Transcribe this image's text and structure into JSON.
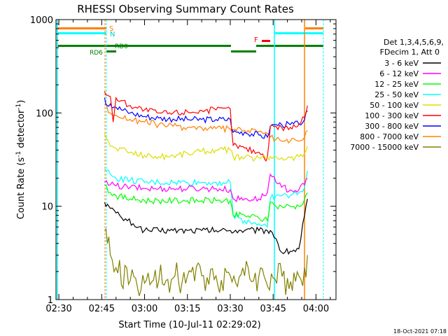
{
  "chart_data": {
    "type": "line",
    "title": "RHESSI Observing Summary Count Rates",
    "xlabel": "Start Time (10-Jul-11 02:29:02)",
    "ylabel_main": "Count Rate (s",
    "ylabel_sup1": "-1",
    "ylabel_mid": " detector",
    "ylabel_sup2": "-1",
    "ylabel_end": ")",
    "y_scale": "log",
    "ylim": [
      1,
      1000
    ],
    "xlim": [
      149,
      247
    ],
    "x_tick_minutes": [
      150,
      165,
      180,
      195,
      210,
      225,
      240
    ],
    "x_tick_labels": [
      "02:30",
      "02:45",
      "03:00",
      "03:15",
      "03:30",
      "03:45",
      "04:00"
    ],
    "y_tick_values": [
      1,
      10,
      100,
      1000
    ],
    "y_tick_labels": [
      "1",
      "10",
      "100",
      "1000"
    ],
    "legend_header": [
      "Det 1,3,4,5,6,9,",
      "FDecim 1, Att 0"
    ],
    "legend_position": "right",
    "timestamp": "18-Oct-2021 07:18",
    "flag_labels": {
      "saa": "S",
      "night": "N",
      "decim": "RD0",
      "decim2": "RD6",
      "flare": "F"
    },
    "series": [
      {
        "name": "3 - 6 keV",
        "color": "#000000",
        "x": [
          166,
          167,
          168,
          170,
          172,
          174,
          176,
          178,
          180,
          185,
          190,
          195,
          200,
          205,
          210,
          215,
          220,
          223,
          224,
          226,
          228,
          231,
          234,
          236,
          237
        ],
        "y": [
          11,
          10.5,
          9.5,
          8.5,
          7.5,
          7,
          6.5,
          6,
          5.5,
          5.5,
          5.5,
          5.5,
          5.5,
          5.5,
          5.5,
          5.5,
          5.5,
          5.5,
          5.5,
          4.5,
          3.2,
          3.3,
          3.5,
          8,
          12
        ]
      },
      {
        "name": "6 - 12 keV",
        "color": "#ff00ff",
        "x": [
          166,
          168,
          170,
          175,
          180,
          185,
          190,
          195,
          200,
          205,
          210,
          211,
          215,
          220,
          223,
          224,
          226,
          228,
          231,
          234,
          236,
          237
        ],
        "y": [
          18,
          17,
          16.5,
          16,
          15.5,
          15.5,
          15.5,
          15.5,
          15.5,
          15.5,
          15,
          12,
          12,
          12,
          14,
          22,
          18,
          16,
          15,
          15,
          17,
          20
        ]
      },
      {
        "name": "12 - 25 keV",
        "color": "#00ff00",
        "x": [
          166,
          168,
          170,
          175,
          180,
          185,
          190,
          195,
          200,
          205,
          210,
          211,
          215,
          220,
          223,
          224,
          226,
          228,
          231,
          234,
          236,
          237
        ],
        "y": [
          17,
          14,
          13,
          12,
          11.5,
          11.5,
          11.5,
          11.5,
          11.5,
          11.5,
          11.5,
          8,
          8,
          7.5,
          7,
          11,
          10,
          10,
          10,
          10,
          12,
          14
        ]
      },
      {
        "name": "25 - 50 keV",
        "color": "#00ffff",
        "x": [
          166,
          168,
          170,
          175,
          180,
          185,
          190,
          195,
          200,
          205,
          210,
          211,
          215,
          220,
          223,
          224,
          226,
          228,
          231,
          234,
          236,
          237
        ],
        "y": [
          25,
          22,
          20,
          19,
          18,
          18,
          18,
          18,
          18,
          18,
          18,
          8,
          7,
          6.5,
          6,
          12,
          13,
          13,
          13,
          14,
          16,
          24
        ]
      },
      {
        "name": "50 - 100 keV",
        "color": "#dddd00",
        "x": [
          166,
          168,
          170,
          175,
          180,
          185,
          190,
          195,
          200,
          205,
          210,
          211,
          215,
          220,
          223,
          224,
          226,
          228,
          231,
          234,
          236,
          237
        ],
        "y": [
          60,
          44,
          42,
          38,
          35,
          34,
          35,
          37,
          39,
          40,
          40,
          34,
          33,
          33,
          33,
          34,
          34,
          33,
          33,
          34,
          37,
          44
        ]
      },
      {
        "name": "100 - 300 keV",
        "color": "#ff0000",
        "x": [
          166,
          167,
          168,
          169,
          170,
          175,
          180,
          185,
          190,
          195,
          200,
          205,
          210,
          211,
          215,
          220,
          222,
          223,
          224,
          226,
          228,
          231,
          234,
          236,
          237
        ],
        "y": [
          170,
          155,
          150,
          80,
          145,
          120,
          108,
          100,
          100,
          103,
          106,
          108,
          110,
          45,
          42,
          38,
          32,
          34,
          72,
          72,
          70,
          70,
          75,
          90,
          120
        ]
      },
      {
        "name": "300 - 800 keV",
        "color": "#0000ff",
        "x": [
          166,
          167,
          168,
          170,
          175,
          180,
          185,
          190,
          195,
          200,
          205,
          210,
          211,
          215,
          220,
          223,
          224,
          226,
          228,
          231,
          234,
          236,
          237
        ],
        "y": [
          145,
          120,
          125,
          115,
          100,
          92,
          88,
          86,
          85,
          85,
          85,
          85,
          62,
          62,
          58,
          55,
          72,
          75,
          75,
          75,
          76,
          85,
          105
        ]
      },
      {
        "name": "800 - 7000 keV",
        "color": "#ff8000",
        "x": [
          166,
          168,
          170,
          175,
          180,
          185,
          190,
          195,
          200,
          205,
          210,
          211,
          215,
          220,
          223,
          224,
          226,
          228,
          231,
          234,
          236,
          237
        ],
        "y": [
          125,
          100,
          95,
          85,
          80,
          75,
          72,
          70,
          69,
          68,
          67,
          66,
          65,
          63,
          60,
          55,
          52,
          50,
          50,
          50,
          55,
          65
        ]
      },
      {
        "name": "7000 - 15000 keV",
        "color": "#808000",
        "x": [
          166,
          167,
          168,
          170,
          175,
          180,
          185,
          190,
          195,
          200,
          205,
          210,
          215,
          220,
          225,
          230,
          234,
          236,
          237
        ],
        "y": [
          5.5,
          4,
          3,
          2.2,
          1.6,
          1.5,
          1.6,
          1.7,
          1.8,
          1.8,
          1.8,
          1.8,
          1.8,
          1.8,
          1.7,
          1.7,
          1.8,
          2.2,
          3
        ]
      }
    ],
    "legend_colors": [
      "#000000",
      "#ff00ff",
      "#00ff00",
      "#00ffff",
      "#dddd00",
      "#ff0000",
      "#0000ff",
      "#ff8000",
      "#808000"
    ]
  }
}
